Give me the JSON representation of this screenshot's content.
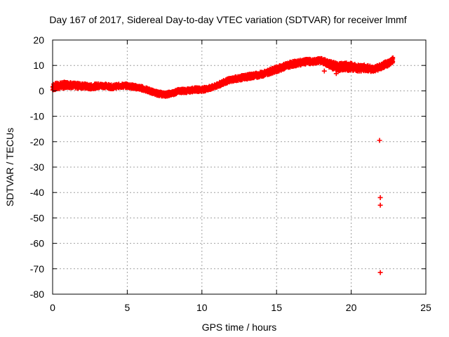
{
  "chart_data": {
    "type": "scatter",
    "title": "Day 167 of 2017, Sidereal Day-to-day VTEC variation (SDTVAR) for receiver lmmf",
    "xlabel": "GPS time / hours",
    "ylabel": "SDTVAR / TECUs",
    "xlim": [
      0,
      25
    ],
    "ylim": [
      -80,
      20
    ],
    "xticks": [
      0,
      5,
      10,
      15,
      20,
      25
    ],
    "yticks": [
      20,
      10,
      0,
      -10,
      -20,
      -30,
      -40,
      -50,
      -60,
      -70,
      -80
    ],
    "grid": true,
    "marker": "+",
    "color": "#ff0000",
    "series": [
      {
        "name": "SDTVAR",
        "trend": [
          [
            0.0,
            1.5
          ],
          [
            0.5,
            2.0
          ],
          [
            1.0,
            2.5
          ],
          [
            1.5,
            2.0
          ],
          [
            2.0,
            2.0
          ],
          [
            2.5,
            1.5
          ],
          [
            3.0,
            2.0
          ],
          [
            3.5,
            2.0
          ],
          [
            4.0,
            1.5
          ],
          [
            4.5,
            2.0
          ],
          [
            5.0,
            2.0
          ],
          [
            5.5,
            1.5
          ],
          [
            6.0,
            1.0
          ],
          [
            6.5,
            0.0
          ],
          [
            7.0,
            -1.0
          ],
          [
            7.5,
            -1.5
          ],
          [
            8.0,
            -1.0
          ],
          [
            8.5,
            0.0
          ],
          [
            9.0,
            0.0
          ],
          [
            9.5,
            0.5
          ],
          [
            10.0,
            0.5
          ],
          [
            10.5,
            1.0
          ],
          [
            11.0,
            2.0
          ],
          [
            11.5,
            3.5
          ],
          [
            12.0,
            4.5
          ],
          [
            12.5,
            5.0
          ],
          [
            13.0,
            5.5
          ],
          [
            13.5,
            6.0
          ],
          [
            14.0,
            6.5
          ],
          [
            14.5,
            7.5
          ],
          [
            15.0,
            8.5
          ],
          [
            15.5,
            9.5
          ],
          [
            16.0,
            10.5
          ],
          [
            16.5,
            11.0
          ],
          [
            17.0,
            11.5
          ],
          [
            17.5,
            11.5
          ],
          [
            18.0,
            12.0
          ],
          [
            18.5,
            10.5
          ],
          [
            19.0,
            9.5
          ],
          [
            19.5,
            9.5
          ],
          [
            20.0,
            9.5
          ],
          [
            20.5,
            9.0
          ],
          [
            21.0,
            9.0
          ],
          [
            21.5,
            8.5
          ],
          [
            22.0,
            9.5
          ],
          [
            22.5,
            11.0
          ],
          [
            22.8,
            12.0
          ]
        ],
        "band_halfwidth": [
          [
            0.0,
            1.5
          ],
          [
            1.5,
            1.2
          ],
          [
            4.0,
            0.9
          ],
          [
            11.0,
            0.9
          ],
          [
            15.5,
            1.2
          ],
          [
            18.0,
            1.0
          ],
          [
            19.0,
            1.8
          ],
          [
            21.5,
            1.2
          ],
          [
            22.8,
            1.2
          ]
        ],
        "outliers": [
          [
            18.2,
            7.8
          ],
          [
            19.0,
            6.8
          ],
          [
            21.9,
            -19.5
          ],
          [
            21.95,
            -42.0
          ],
          [
            21.95,
            -45.0
          ],
          [
            21.95,
            -71.5
          ]
        ]
      }
    ]
  }
}
